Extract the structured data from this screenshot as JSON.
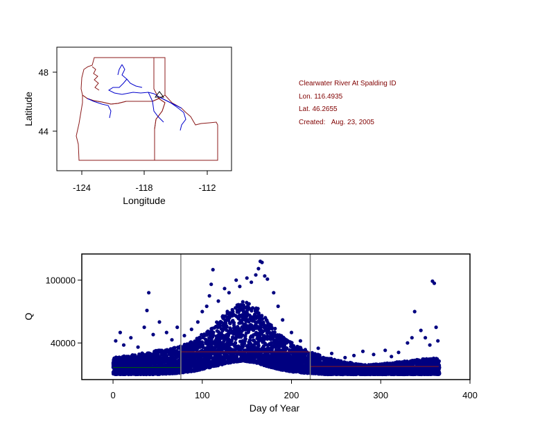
{
  "map": {
    "xlabel": "Longitude",
    "ylabel": "Latitude",
    "xticks": [
      "-124",
      "-118",
      "-112"
    ],
    "yticks": [
      "48",
      "44"
    ],
    "colors": {
      "border": "#8b1a1a",
      "river": "#0000cc"
    }
  },
  "info": {
    "station": "Clearwater River At Spalding ID",
    "lon": "Lon. 116.4935",
    "lat": "Lat. 46.2655",
    "created_label": "Created:",
    "created_date": "Aug. 23, 2005"
  },
  "chart_data": {
    "type": "scatter",
    "xlabel": "Day of Year",
    "ylabel": "Q",
    "xlim": [
      -35,
      400
    ],
    "ylim": [
      5000,
      125000
    ],
    "xticks": [
      0,
      100,
      200,
      300,
      400
    ],
    "yticks": [
      40000,
      100000
    ],
    "vlines": [
      76,
      221
    ],
    "segments": [
      {
        "x": [
          0,
          76
        ],
        "y": 16500,
        "color": "#006400"
      },
      {
        "x": [
          76,
          221
        ],
        "y": 31500,
        "color": "#8b1a1a"
      },
      {
        "x": [
          221,
          365
        ],
        "y": 17500,
        "color": "#8b1a1a"
      }
    ],
    "colors": {
      "points": "#000080",
      "vline": "#808080"
    },
    "envelope": [
      [
        0,
        10000,
        26000
      ],
      [
        15,
        10000,
        28000
      ],
      [
        30,
        10000,
        30000
      ],
      [
        50,
        10000,
        33000
      ],
      [
        70,
        11000,
        36000
      ],
      [
        90,
        13000,
        42000
      ],
      [
        110,
        17000,
        55000
      ],
      [
        130,
        21000,
        72000
      ],
      [
        145,
        23000,
        80000
      ],
      [
        160,
        21000,
        75000
      ],
      [
        175,
        17000,
        60000
      ],
      [
        190,
        14000,
        46000
      ],
      [
        205,
        12000,
        38000
      ],
      [
        220,
        11000,
        32000
      ],
      [
        240,
        10000,
        26000
      ],
      [
        260,
        10000,
        22000
      ],
      [
        280,
        10000,
        19000
      ],
      [
        300,
        10000,
        20000
      ],
      [
        320,
        10000,
        22000
      ],
      [
        340,
        10000,
        24000
      ],
      [
        365,
        10000,
        26000
      ]
    ],
    "outliers": [
      [
        3,
        42000
      ],
      [
        8,
        50000
      ],
      [
        12,
        38000
      ],
      [
        20,
        45000
      ],
      [
        28,
        36000
      ],
      [
        35,
        55000
      ],
      [
        38,
        71000
      ],
      [
        40,
        88000
      ],
      [
        45,
        48000
      ],
      [
        52,
        60000
      ],
      [
        60,
        50000
      ],
      [
        66,
        43000
      ],
      [
        72,
        55000
      ],
      [
        80,
        47000
      ],
      [
        88,
        53000
      ],
      [
        95,
        60000
      ],
      [
        100,
        70000
      ],
      [
        105,
        75000
      ],
      [
        108,
        85000
      ],
      [
        110,
        96000
      ],
      [
        112,
        110000
      ],
      [
        118,
        80000
      ],
      [
        125,
        92000
      ],
      [
        130,
        88000
      ],
      [
        138,
        100000
      ],
      [
        142,
        94000
      ],
      [
        150,
        102000
      ],
      [
        155,
        98000
      ],
      [
        160,
        105000
      ],
      [
        163,
        111000
      ],
      [
        165,
        118000
      ],
      [
        167,
        117000
      ],
      [
        170,
        104000
      ],
      [
        173,
        101000
      ],
      [
        180,
        88000
      ],
      [
        185,
        75000
      ],
      [
        190,
        62000
      ],
      [
        200,
        50000
      ],
      [
        210,
        42000
      ],
      [
        230,
        35000
      ],
      [
        245,
        30000
      ],
      [
        260,
        26000
      ],
      [
        270,
        28000
      ],
      [
        280,
        32000
      ],
      [
        292,
        29000
      ],
      [
        305,
        33000
      ],
      [
        312,
        27000
      ],
      [
        320,
        31000
      ],
      [
        330,
        40000
      ],
      [
        335,
        45000
      ],
      [
        338,
        70000
      ],
      [
        345,
        52000
      ],
      [
        350,
        45000
      ],
      [
        355,
        38000
      ],
      [
        358,
        99000
      ],
      [
        360,
        97000
      ],
      [
        362,
        55000
      ],
      [
        364,
        42000
      ]
    ]
  }
}
